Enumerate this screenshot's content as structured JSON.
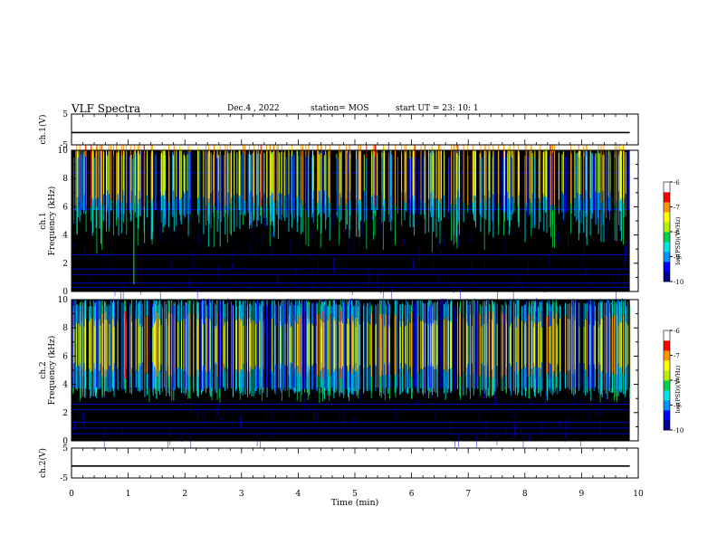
{
  "header": {
    "title": "VLF Spectra",
    "date": "Dec.4 , 2022",
    "station": "station= MOS",
    "start": "start UT =  23: 10: 1"
  },
  "chart_data": [
    {
      "type": "line",
      "panel": "waveform",
      "ylabel": "ch.1(V)",
      "ylim": [
        -5,
        5
      ],
      "y_ticks": [
        "5",
        "-5"
      ],
      "xlim": [
        0,
        10
      ],
      "series": [
        {
          "x": [
            0,
            9.85
          ],
          "y": [
            -1,
            -1
          ]
        }
      ]
    },
    {
      "type": "heatmap",
      "panel": "spectrogram",
      "ylabel_line1": "ch.1",
      "ylabel_line2": "Frequency (kHz)",
      "ylim": [
        0,
        10
      ],
      "y_ticks": [
        "0",
        "2",
        "4",
        "6",
        "8",
        "10"
      ],
      "xlim": [
        0,
        10
      ],
      "data_end_min": 9.85,
      "colorbar": {
        "label": "log(PSD)(V²/Hz)",
        "ticks": [
          "-6",
          "-7",
          "-8",
          "-9",
          "-10"
        ],
        "range": [
          -10,
          -6
        ]
      },
      "band_khz": [
        5.8,
        9.4
      ],
      "band_peak_khz": 8.4,
      "persistent_lines_khz": [
        0.3,
        0.6,
        1.2,
        1.6,
        2.6,
        5.8,
        8.4
      ],
      "bright_line_min": 1.1
    },
    {
      "type": "heatmap",
      "panel": "spectrogram",
      "ylabel_line1": "ch.2",
      "ylabel_line2": "Frequency (kHz)",
      "ylim": [
        0,
        10
      ],
      "y_ticks": [
        "0",
        "2",
        "4",
        "6",
        "8",
        "10"
      ],
      "xlim": [
        0,
        10
      ],
      "data_end_min": 9.85,
      "colorbar": {
        "label": "log(PSD)(V²/Hz)",
        "ticks": [
          "-6",
          "-7",
          "-8",
          "-9",
          "-10"
        ],
        "range": [
          -10,
          -6
        ]
      },
      "band_khz": [
        3.8,
        9.5
      ],
      "band_peak_khz": 6.8,
      "persistent_lines_khz": [
        0.5,
        0.9,
        1.3,
        2.2,
        2.6
      ]
    },
    {
      "type": "line",
      "panel": "waveform",
      "ylabel": "ch.2(V)",
      "ylim": [
        -5,
        5
      ],
      "y_ticks": [
        "5",
        "-5"
      ],
      "xlim": [
        0,
        10
      ],
      "series": [
        {
          "x": [
            0,
            9.85
          ],
          "y": [
            -1,
            -1
          ]
        }
      ]
    }
  ],
  "x_axis": {
    "label": "Time (min)",
    "ticks": [
      "0",
      "1",
      "2",
      "3",
      "4",
      "5",
      "6",
      "7",
      "8",
      "9",
      "10"
    ]
  },
  "colors": {
    "background": "#000000",
    "colormap": [
      "#00008c",
      "#0000ff",
      "#0096ff",
      "#00e6e6",
      "#00d24b",
      "#b4f000",
      "#ffff00",
      "#ff9600",
      "#ff0000",
      "#ffffff"
    ]
  }
}
